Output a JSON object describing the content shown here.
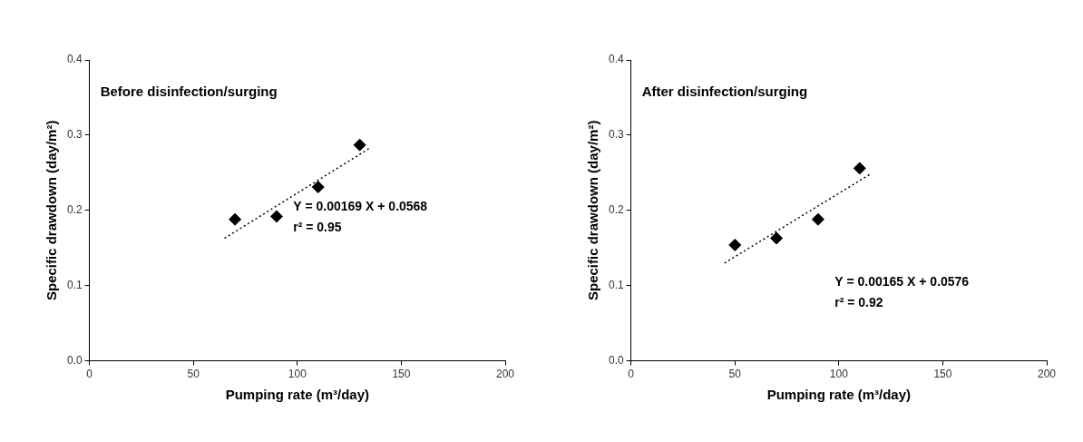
{
  "chart_data": [
    {
      "type": "scatter",
      "title": "Before disinfection/surging",
      "x_label": "Pumping rate (m³/day)",
      "y_label": "Specific drawdown (day/m²)",
      "annotations": [
        "Y = 0.00169 X + 0.0568",
        "r² = 0.95"
      ],
      "xlim": [
        0,
        200
      ],
      "xticks": [
        0,
        50,
        100,
        150,
        200
      ],
      "ylim": [
        0,
        0.4
      ],
      "yticks": [
        {
          "value": 0,
          "label": "0.0"
        },
        0.1,
        0.2,
        0.3,
        0.4
      ],
      "grid": false,
      "series": [
        {
          "type": "scatter",
          "marker": "diamond",
          "color": "#000000",
          "x": [
            70,
            90,
            110,
            130
          ],
          "values": [
            0.188,
            0.192,
            0.231,
            0.287
          ]
        },
        {
          "type": "line",
          "line_style": "dotted",
          "color": "#000000",
          "x": [
            65,
            135
          ],
          "values": [
            0.163,
            0.283
          ]
        }
      ]
    },
    {
      "type": "scatter",
      "title": "After disinfection/surging",
      "x_label": "Pumping rate (m³/day)",
      "y_label": "Specific drawdown (day/m²)",
      "annotations": [
        "Y = 0.00165 X + 0.0576",
        "r² = 0.92"
      ],
      "xlim": [
        0,
        200
      ],
      "xticks": [
        0,
        50,
        100,
        150,
        200
      ],
      "ylim": [
        0,
        0.4
      ],
      "yticks": [
        {
          "value": 0,
          "label": "0.0"
        },
        0.1,
        0.2,
        0.3,
        0.4
      ],
      "grid": false,
      "series": [
        {
          "type": "scatter",
          "marker": "diamond",
          "color": "#000000",
          "x": [
            50,
            70,
            90,
            110
          ],
          "values": [
            0.154,
            0.163,
            0.188,
            0.256
          ]
        },
        {
          "type": "line",
          "line_style": "dotted",
          "color": "#000000",
          "x": [
            45,
            115
          ],
          "values": [
            0.13,
            0.248
          ]
        }
      ]
    }
  ]
}
